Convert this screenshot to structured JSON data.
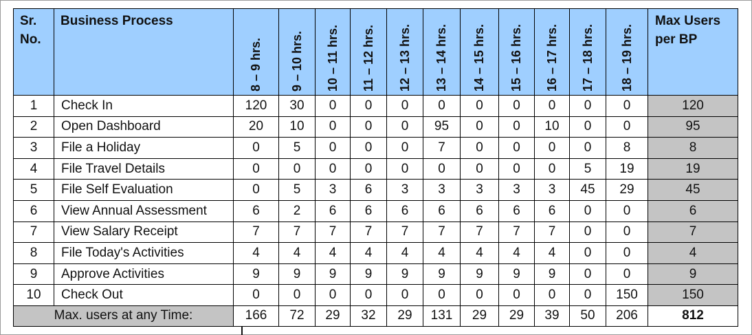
{
  "headers": {
    "sr": "Sr. No.",
    "bp": "Business Process",
    "hours": [
      "8 – 9 hrs.",
      "9 – 10 hrs.",
      "10 – 11 hrs.",
      "11 – 12 hrs.",
      "12 – 13 hrs.",
      "13 – 14 hrs.",
      "14 – 15 hrs.",
      "15 – 16 hrs.",
      "16 – 17 hrs.",
      "17 – 18 hrs.",
      "18 – 19 hrs."
    ],
    "max": "Max Users per BP"
  },
  "rows": [
    {
      "sr": "1",
      "name": "Check In",
      "values": [
        "120",
        "30",
        "0",
        "0",
        "0",
        "0",
        "0",
        "0",
        "0",
        "0",
        "0"
      ],
      "max": "120"
    },
    {
      "sr": "2",
      "name": "Open Dashboard",
      "values": [
        "20",
        "10",
        "0",
        "0",
        "0",
        "95",
        "0",
        "0",
        "10",
        "0",
        "0"
      ],
      "max": "95"
    },
    {
      "sr": "3",
      "name": "File a Holiday",
      "values": [
        "0",
        "5",
        "0",
        "0",
        "0",
        "7",
        "0",
        "0",
        "0",
        "0",
        "8"
      ],
      "max": "8"
    },
    {
      "sr": "4",
      "name": "File Travel Details",
      "values": [
        "0",
        "0",
        "0",
        "0",
        "0",
        "0",
        "0",
        "0",
        "0",
        "5",
        "19"
      ],
      "max": "19"
    },
    {
      "sr": "5",
      "name": "File Self Evaluation",
      "values": [
        "0",
        "5",
        "3",
        "6",
        "3",
        "3",
        "3",
        "3",
        "3",
        "45",
        "29"
      ],
      "max": "45"
    },
    {
      "sr": "6",
      "name": "View Annual Assessment",
      "values": [
        "6",
        "2",
        "6",
        "6",
        "6",
        "6",
        "6",
        "6",
        "6",
        "0",
        "0"
      ],
      "max": "6"
    },
    {
      "sr": "7",
      "name": "View Salary Receipt",
      "values": [
        "7",
        "7",
        "7",
        "7",
        "7",
        "7",
        "7",
        "7",
        "7",
        "0",
        "0"
      ],
      "max": "7"
    },
    {
      "sr": "8",
      "name": "File Today's Activities",
      "values": [
        "4",
        "4",
        "4",
        "4",
        "4",
        "4",
        "4",
        "4",
        "4",
        "0",
        "0"
      ],
      "max": "4"
    },
    {
      "sr": "9",
      "name": "Approve Activities",
      "values": [
        "9",
        "9",
        "9",
        "9",
        "9",
        "9",
        "9",
        "9",
        "9",
        "0",
        "0"
      ],
      "max": "9"
    },
    {
      "sr": "10",
      "name": "Check Out",
      "values": [
        "0",
        "0",
        "0",
        "0",
        "0",
        "0",
        "0",
        "0",
        "0",
        "0",
        "150"
      ],
      "max": "150"
    }
  ],
  "footer": {
    "label": "Max. users at any Time:",
    "values": [
      "166",
      "72",
      "29",
      "32",
      "29",
      "131",
      "29",
      "29",
      "39",
      "50",
      "206"
    ],
    "total": "812"
  },
  "colors": {
    "header_bg": "#9fcfff",
    "gray_bg": "#c4c4c4"
  }
}
